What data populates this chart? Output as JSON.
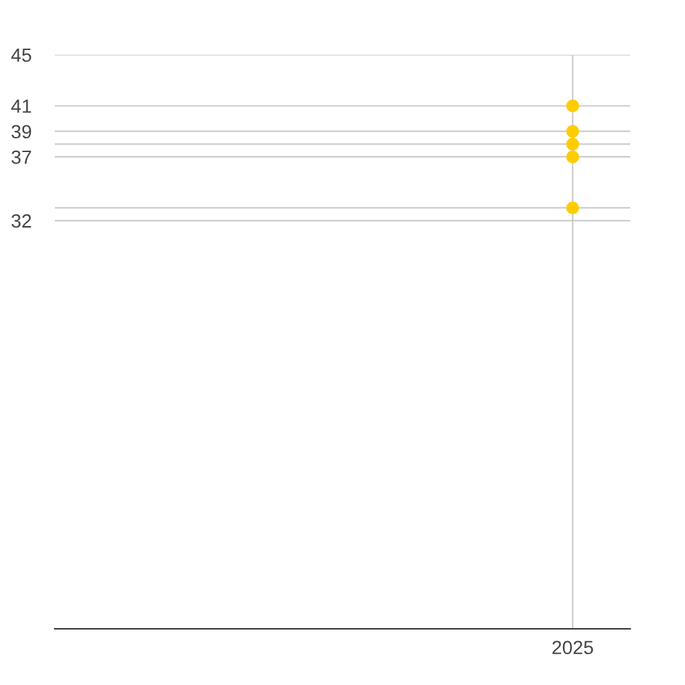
{
  "chart_data": {
    "type": "scatter",
    "categories": [
      null,
      null,
      null,
      null,
      "2025"
    ],
    "series": [
      {
        "color": "#ffcc00",
        "values": [
          null,
          null,
          null,
          null,
          41
        ]
      },
      {
        "color": "#ffcc00",
        "values": [
          null,
          null,
          null,
          null,
          39
        ]
      },
      {
        "color": "#ffcc00",
        "values": [
          null,
          null,
          null,
          null,
          38
        ]
      },
      {
        "color": "#ffcc00",
        "values": [
          null,
          null,
          null,
          null,
          37
        ]
      },
      {
        "color": "#ffcc00",
        "values": [
          null,
          null,
          null,
          null,
          33
        ]
      }
    ],
    "marker": "circle",
    "ylim": [
      0,
      45
    ],
    "yticks": [
      32,
      {
        "value": 33,
        "label": null
      },
      37,
      {
        "value": 38,
        "label": null
      },
      39,
      41,
      45
    ],
    "grid": true
  }
}
